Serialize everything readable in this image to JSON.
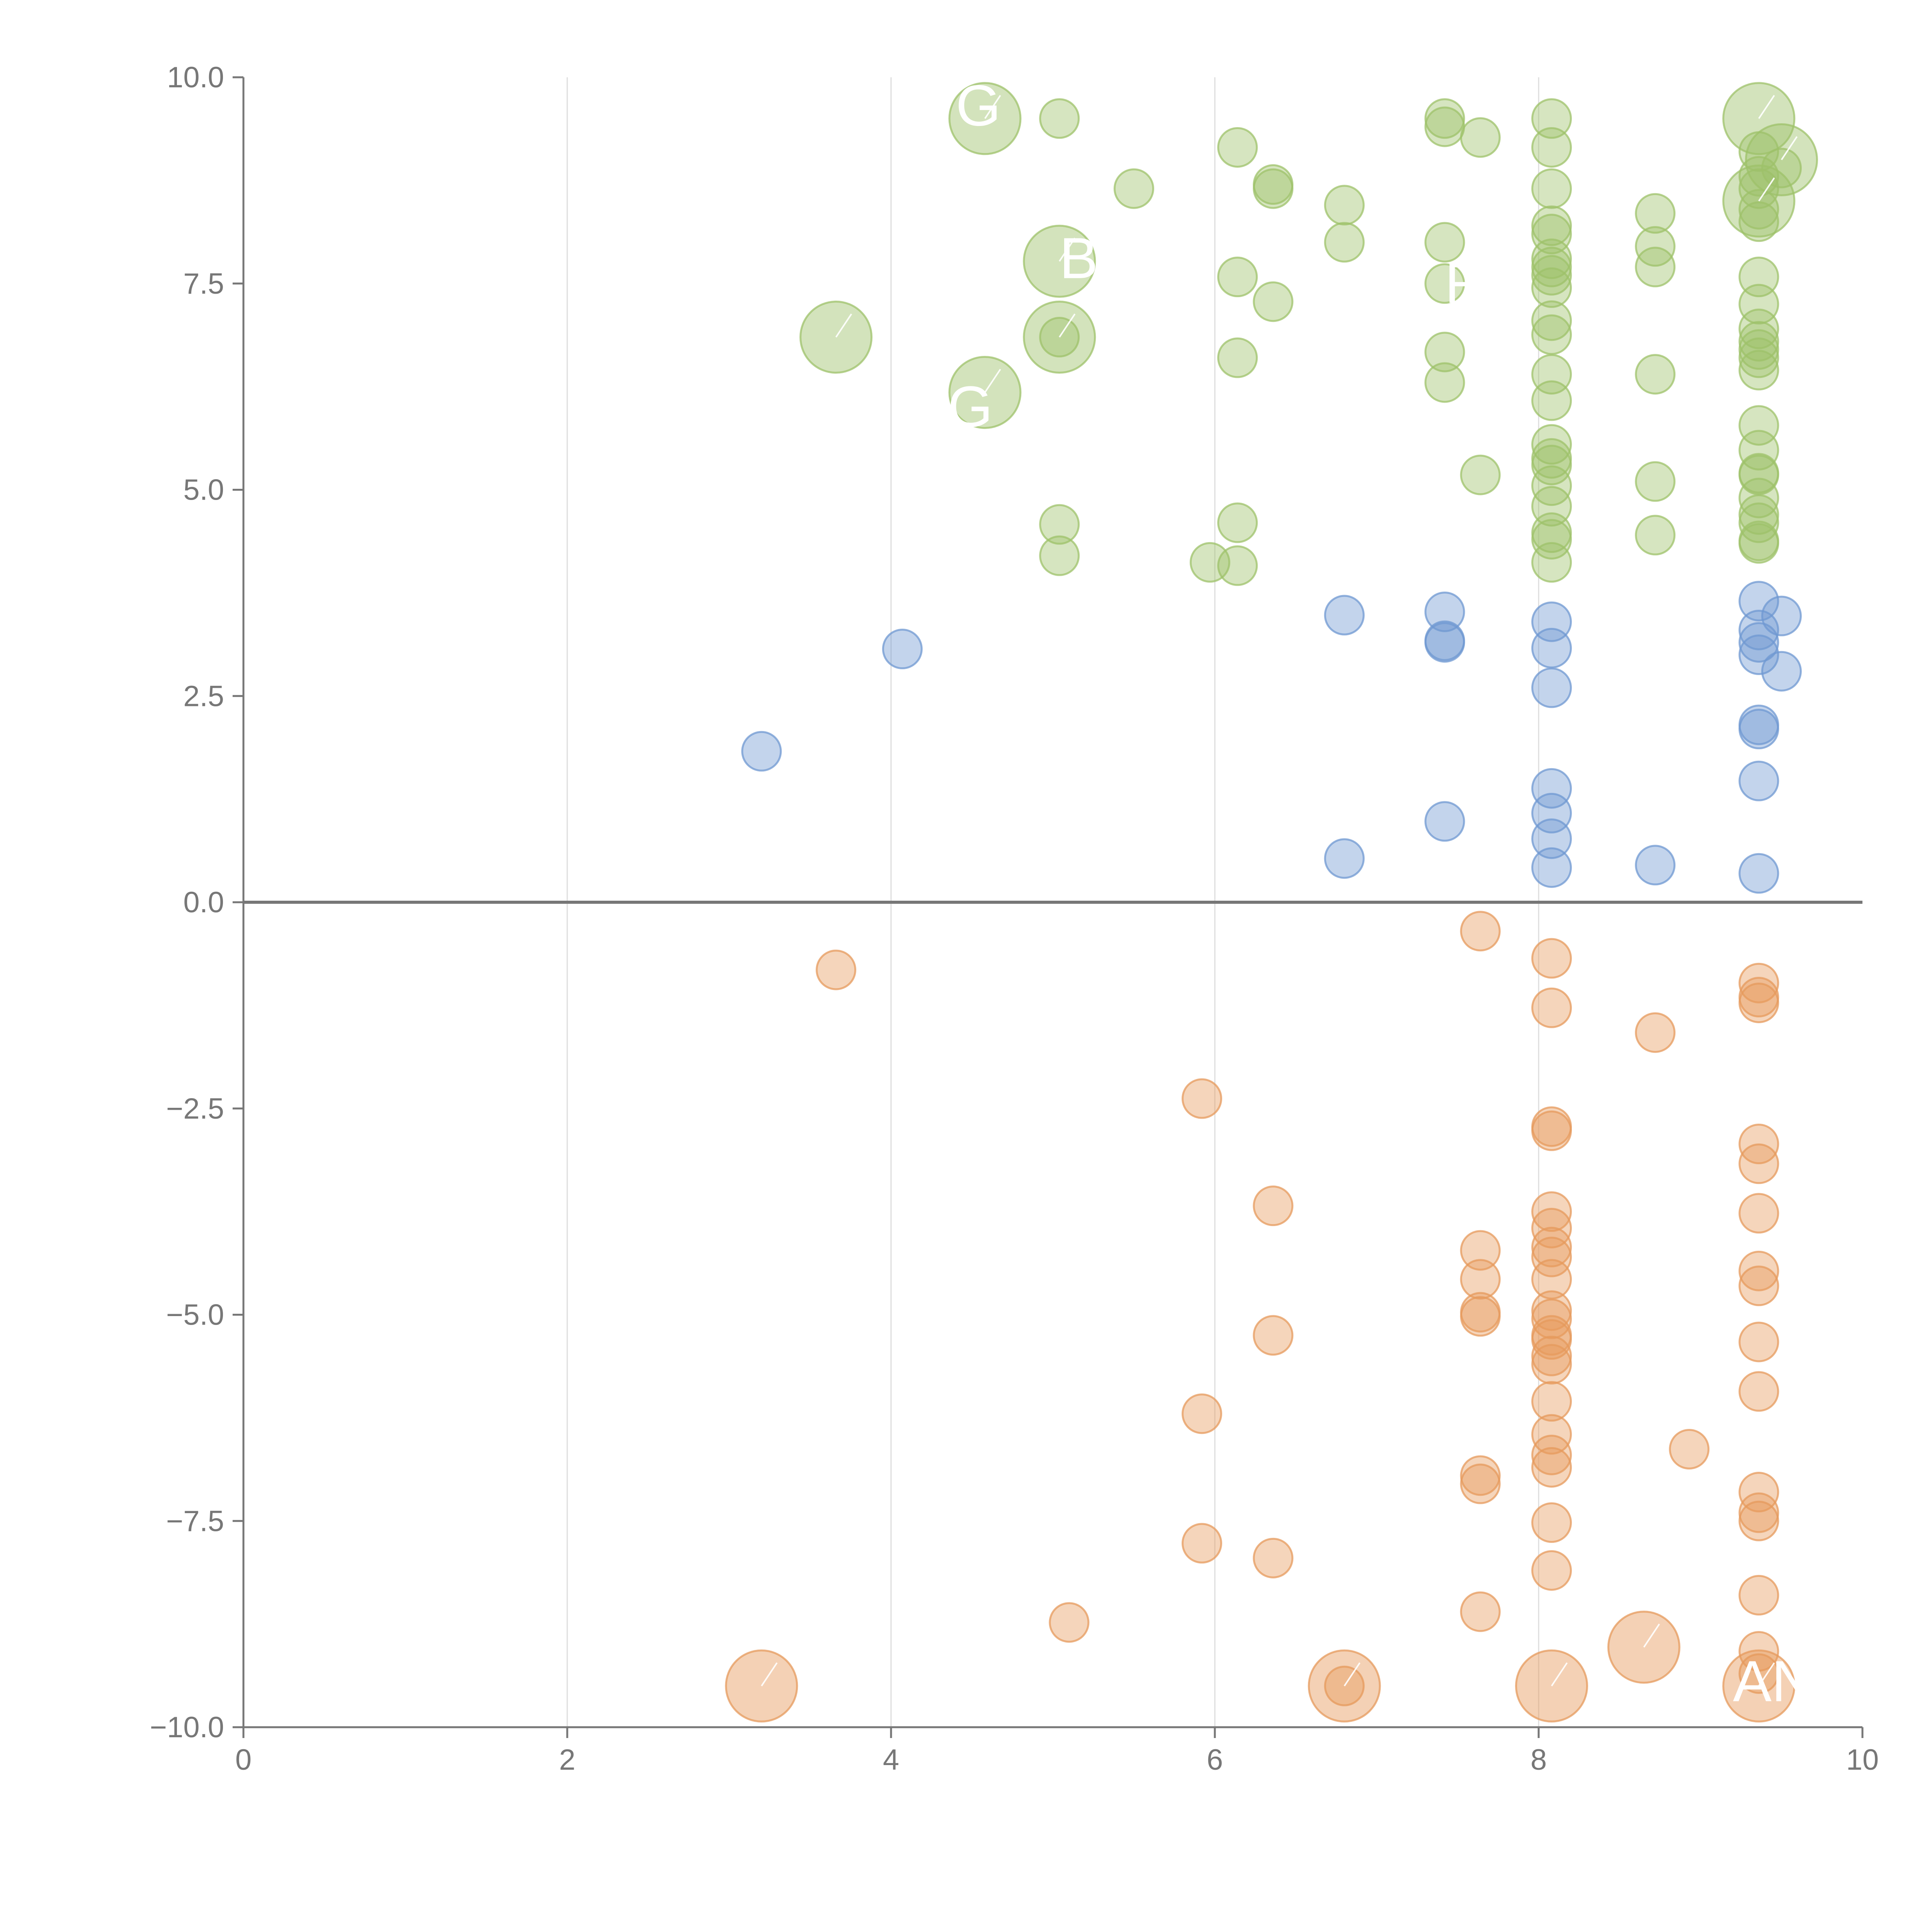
{
  "chart_data": {
    "type": "scatter",
    "title": "",
    "xlabel": "",
    "ylabel": "",
    "xlim": [
      0,
      10
    ],
    "ylim": [
      -10,
      10
    ],
    "x_ticks": [
      "0",
      "2",
      "4",
      "6",
      "8",
      "10"
    ],
    "y_ticks": [
      "10.0",
      "7.5",
      "5.0",
      "2.5",
      "0.0",
      "−2.5",
      "−5.0",
      "−7.5",
      "−10.0"
    ],
    "x_tick_values": [
      0,
      2,
      4,
      6,
      8,
      10
    ],
    "y_tick_values": [
      10,
      7.5,
      5,
      2.5,
      0,
      -2.5,
      -5,
      -7.5,
      -10
    ],
    "grid": {
      "x": true,
      "y": false
    },
    "zero_line": true,
    "legend": "none",
    "colors": {
      "green": "#9dc26a",
      "blue": "#6f98d2",
      "orange": "#e69a5c",
      "grid": "#dddddd",
      "axis": "#777777",
      "callout_text": "#ffffff"
    },
    "series": [
      {
        "color": "green",
        "points": [
          [
            5.04,
            9.5
          ],
          [
            6.14,
            9.15
          ],
          [
            7.42,
            9.5
          ],
          [
            7.42,
            9.4
          ],
          [
            7.64,
            9.27
          ],
          [
            8.08,
            9.5
          ],
          [
            8.08,
            9.15
          ],
          [
            5.5,
            8.65
          ],
          [
            6.36,
            8.7
          ],
          [
            6.36,
            8.65
          ],
          [
            6.8,
            8.45
          ],
          [
            6.8,
            8.0
          ],
          [
            7.42,
            8.0
          ],
          [
            8.08,
            8.65
          ],
          [
            8.08,
            8.2
          ],
          [
            8.08,
            8.1
          ],
          [
            8.08,
            7.8
          ],
          [
            8.08,
            7.7
          ],
          [
            8.08,
            7.6
          ],
          [
            8.08,
            7.45
          ],
          [
            8.72,
            8.35
          ],
          [
            8.72,
            7.95
          ],
          [
            8.72,
            7.7
          ],
          [
            6.14,
            7.58
          ],
          [
            6.36,
            7.28
          ],
          [
            7.42,
            7.5
          ],
          [
            5.04,
            6.85
          ],
          [
            6.14,
            6.6
          ],
          [
            7.42,
            6.67
          ],
          [
            7.42,
            6.3
          ],
          [
            8.08,
            7.05
          ],
          [
            8.08,
            6.88
          ],
          [
            8.08,
            6.4
          ],
          [
            8.08,
            6.08
          ],
          [
            8.72,
            6.4
          ],
          [
            9.36,
            9.1
          ],
          [
            9.36,
            8.8
          ],
          [
            9.36,
            8.65
          ],
          [
            9.36,
            8.4
          ],
          [
            9.36,
            8.25
          ],
          [
            9.36,
            7.58
          ],
          [
            9.36,
            7.25
          ],
          [
            9.36,
            6.95
          ],
          [
            9.36,
            6.8
          ],
          [
            9.36,
            6.7
          ],
          [
            9.36,
            6.6
          ],
          [
            9.36,
            6.45
          ],
          [
            9.5,
            8.9
          ],
          [
            9.36,
            5.78
          ],
          [
            9.36,
            5.48
          ],
          [
            9.36,
            5.2
          ],
          [
            9.36,
            5.18
          ],
          [
            9.36,
            4.9
          ],
          [
            9.36,
            4.7
          ],
          [
            9.36,
            4.6
          ],
          [
            9.36,
            4.38
          ],
          [
            9.36,
            4.35
          ],
          [
            8.08,
            5.55
          ],
          [
            8.08,
            5.38
          ],
          [
            8.08,
            5.3
          ],
          [
            8.08,
            5.05
          ],
          [
            8.08,
            4.8
          ],
          [
            8.08,
            4.48
          ],
          [
            8.08,
            4.4
          ],
          [
            8.08,
            4.12
          ],
          [
            7.64,
            5.18
          ],
          [
            8.72,
            5.1
          ],
          [
            8.72,
            4.45
          ],
          [
            5.04,
            4.58
          ],
          [
            5.04,
            4.2
          ],
          [
            6.14,
            4.6
          ],
          [
            6.14,
            4.08
          ],
          [
            5.97,
            4.12
          ]
        ]
      },
      {
        "color": "blue",
        "points": [
          [
            3.2,
            1.83
          ],
          [
            4.07,
            3.07
          ],
          [
            6.8,
            3.48
          ],
          [
            6.8,
            0.53
          ],
          [
            7.42,
            3.52
          ],
          [
            7.42,
            3.17
          ],
          [
            7.42,
            3.15
          ],
          [
            7.42,
            0.98
          ],
          [
            8.08,
            3.4
          ],
          [
            8.08,
            3.08
          ],
          [
            8.08,
            2.6
          ],
          [
            8.08,
            1.38
          ],
          [
            8.08,
            1.08
          ],
          [
            8.08,
            0.77
          ],
          [
            8.08,
            0.42
          ],
          [
            8.72,
            0.45
          ],
          [
            9.36,
            3.65
          ],
          [
            9.36,
            3.3
          ],
          [
            9.36,
            3.15
          ],
          [
            9.36,
            3.0
          ],
          [
            9.36,
            2.15
          ],
          [
            9.36,
            2.1
          ],
          [
            9.36,
            1.47
          ],
          [
            9.36,
            0.35
          ],
          [
            9.5,
            3.47
          ],
          [
            9.5,
            2.8
          ]
        ]
      },
      {
        "color": "orange",
        "points": [
          [
            3.66,
            -0.82
          ],
          [
            5.92,
            -2.38
          ],
          [
            5.92,
            -6.2
          ],
          [
            5.92,
            -7.77
          ],
          [
            6.36,
            -3.68
          ],
          [
            6.36,
            -5.25
          ],
          [
            6.36,
            -7.95
          ],
          [
            5.1,
            -8.73
          ],
          [
            6.8,
            -9.5
          ],
          [
            7.64,
            -0.35
          ],
          [
            7.64,
            -4.22
          ],
          [
            7.64,
            -4.57
          ],
          [
            7.64,
            -4.97
          ],
          [
            7.64,
            -5.02
          ],
          [
            7.64,
            -6.95
          ],
          [
            7.64,
            -7.05
          ],
          [
            7.64,
            -8.6
          ],
          [
            8.08,
            -0.68
          ],
          [
            8.08,
            -1.28
          ],
          [
            8.08,
            -2.72
          ],
          [
            8.08,
            -2.77
          ],
          [
            8.08,
            -3.75
          ],
          [
            8.08,
            -3.95
          ],
          [
            8.08,
            -4.18
          ],
          [
            8.08,
            -4.3
          ],
          [
            8.08,
            -4.57
          ],
          [
            8.08,
            -4.95
          ],
          [
            8.08,
            -5.05
          ],
          [
            8.08,
            -5.25
          ],
          [
            8.08,
            -5.3
          ],
          [
            8.08,
            -5.5
          ],
          [
            8.08,
            -5.6
          ],
          [
            8.08,
            -6.05
          ],
          [
            8.08,
            -6.45
          ],
          [
            8.08,
            -6.7
          ],
          [
            8.08,
            -6.85
          ],
          [
            8.08,
            -7.52
          ],
          [
            8.08,
            -8.1
          ],
          [
            8.72,
            -1.58
          ],
          [
            8.93,
            -6.63
          ],
          [
            9.36,
            -0.98
          ],
          [
            9.36,
            -1.15
          ],
          [
            9.36,
            -1.22
          ],
          [
            9.36,
            -2.93
          ],
          [
            9.36,
            -3.17
          ],
          [
            9.36,
            -3.77
          ],
          [
            9.36,
            -4.47
          ],
          [
            9.36,
            -4.65
          ],
          [
            9.36,
            -5.33
          ],
          [
            9.36,
            -5.93
          ],
          [
            9.36,
            -7.15
          ],
          [
            9.36,
            -7.4
          ],
          [
            9.36,
            -7.5
          ],
          [
            9.36,
            -8.4
          ],
          [
            9.36,
            -9.08
          ],
          [
            9.36,
            -9.35
          ]
        ]
      }
    ],
    "highlights": [
      {
        "color": "green",
        "x": 4.58,
        "y": 9.5
      },
      {
        "color": "green",
        "x": 5.04,
        "y": 7.77
      },
      {
        "color": "green",
        "x": 3.66,
        "y": 6.85
      },
      {
        "color": "green",
        "x": 5.04,
        "y": 6.85
      },
      {
        "color": "green",
        "x": 4.58,
        "y": 6.18
      },
      {
        "color": "green",
        "x": 9.36,
        "y": 9.5
      },
      {
        "color": "green",
        "x": 9.5,
        "y": 9.0
      },
      {
        "color": "green",
        "x": 9.36,
        "y": 8.5
      },
      {
        "color": "orange",
        "x": 3.2,
        "y": -9.5
      },
      {
        "color": "orange",
        "x": 6.8,
        "y": -9.5
      },
      {
        "color": "orange",
        "x": 8.08,
        "y": -9.5
      },
      {
        "color": "orange",
        "x": 8.65,
        "y": -9.03
      },
      {
        "color": "orange",
        "x": 9.36,
        "y": -9.5
      }
    ],
    "annotations": [
      {
        "text": "G",
        "x": 4.4,
        "y": 9.65
      },
      {
        "text": "BC",
        "x": 5.04,
        "y": 7.8
      },
      {
        "text": "R",
        "x": 7.42,
        "y": 7.5
      },
      {
        "text": "G",
        "x": 4.35,
        "y": 6.0
      },
      {
        "text": "ANC",
        "x": 9.2,
        "y": -9.45
      }
    ]
  }
}
